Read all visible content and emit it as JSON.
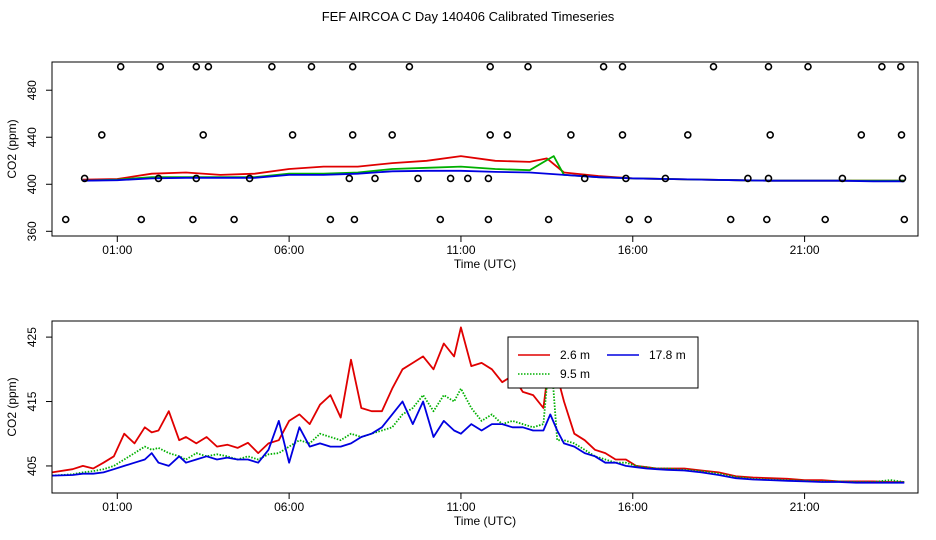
{
  "title": "FEF AIRCOA C  Day 140406  Calibrated Timeseries",
  "chart_data": [
    {
      "type": "line",
      "panel": "top",
      "xlabel": "Time (UTC)",
      "ylabel": "CO2 (ppm)",
      "xlim": [
        -0.9,
        24.3
      ],
      "ylim": [
        356,
        504
      ],
      "x_ticks": [
        1,
        6,
        11,
        16,
        21
      ],
      "x_tick_labels": [
        "01:00",
        "06:00",
        "11:00",
        "16:00",
        "21:00"
      ],
      "y_ticks": [
        360,
        400,
        440,
        480
      ],
      "y_tick_labels": [
        "360",
        "400",
        "440",
        "480"
      ],
      "grid": false,
      "series": [
        {
          "color": "#e00000",
          "x": [
            0,
            1,
            2,
            3,
            4,
            5,
            6,
            7,
            8,
            9,
            10,
            11,
            12,
            13,
            13.5,
            14,
            15,
            16,
            17,
            18,
            19,
            20,
            21,
            22,
            23,
            23.9
          ],
          "values": [
            404,
            404.5,
            409,
            410,
            408,
            409,
            413,
            415,
            415,
            418,
            420,
            424,
            420,
            419,
            422,
            410,
            407,
            405,
            404.5,
            404,
            403.5,
            403,
            403,
            403,
            403,
            403
          ]
        },
        {
          "color": "#00b000",
          "x": [
            0,
            1,
            2,
            3,
            4,
            5,
            6,
            7,
            8,
            9,
            10,
            11,
            12,
            13,
            13.7,
            14,
            15,
            16,
            17,
            18,
            19,
            20,
            21,
            22,
            23,
            23.9
          ],
          "values": [
            403,
            404,
            406,
            406,
            406,
            406,
            409,
            409,
            410,
            413,
            414,
            415,
            413,
            412,
            424,
            408,
            406,
            405,
            404.5,
            404,
            403.5,
            403,
            403,
            403,
            403,
            403
          ]
        },
        {
          "color": "#0000e0",
          "x": [
            0,
            1,
            2,
            3,
            4,
            5,
            6,
            7,
            8,
            9,
            10,
            11,
            12,
            13,
            14,
            15,
            16,
            17,
            18,
            19,
            20,
            21,
            22,
            23,
            23.9
          ],
          "values": [
            403,
            403.5,
            405,
            405.5,
            405.5,
            405.5,
            408,
            408,
            409,
            411,
            411.5,
            411.5,
            410.5,
            410,
            408,
            406,
            405,
            404.5,
            404,
            403.5,
            403,
            403,
            403,
            402.5,
            402.5
          ]
        }
      ],
      "flag_points": {
        "x": [
          -0.5,
          0.05,
          0.55,
          1.1,
          1.7,
          2.2,
          2.25,
          3.2,
          3.3,
          3.3,
          3.5,
          3.65,
          4.4,
          4.85,
          5.5,
          6.1,
          6.65,
          7.2,
          7.75,
          7.85,
          7.85,
          7.9,
          8.5,
          9.0,
          9.5,
          9.75,
          10.4,
          10.7,
          11.2,
          11.8,
          11.8,
          11.85,
          11.85,
          12.35,
          12.95,
          13.55,
          14.2,
          14.6,
          15.15,
          15.7,
          15.7,
          15.8,
          15.9,
          16.45,
          16.95,
          17.6,
          18.35,
          18.85,
          19.35,
          19.9,
          19.95,
          19.95,
          20.0,
          21.1,
          21.6,
          22.1,
          22.65,
          23.25,
          23.8,
          23.82,
          23.85,
          23.9
        ],
        "values": [
          370,
          405,
          442,
          500,
          370,
          405,
          500,
          370,
          500,
          405,
          442,
          500,
          370,
          405,
          500,
          442,
          500,
          370,
          405,
          500,
          442,
          370,
          405,
          442,
          500,
          405,
          370,
          405,
          405,
          370,
          405,
          500,
          442,
          442,
          500,
          370,
          442,
          405,
          500,
          500,
          442,
          405,
          370,
          370,
          405,
          442,
          500,
          370,
          405,
          370,
          405,
          500,
          442,
          500,
          370,
          405,
          442,
          500,
          500,
          442,
          405,
          370
        ]
      }
    },
    {
      "type": "line",
      "panel": "bottom",
      "xlabel": "Time (UTC)",
      "ylabel": "CO2 (ppm)",
      "xlim": [
        -0.9,
        24.3
      ],
      "ylim": [
        400.8,
        427.5
      ],
      "x_ticks": [
        1,
        6,
        11,
        16,
        21
      ],
      "x_tick_labels": [
        "01:00",
        "06:00",
        "11:00",
        "16:00",
        "21:00"
      ],
      "y_ticks": [
        405,
        415,
        425
      ],
      "y_tick_labels": [
        "405",
        "415",
        "425"
      ],
      "grid": false,
      "legend": {
        "placement": "top-center",
        "columns": 2
      },
      "series": [
        {
          "name": "2.6 m",
          "color": "#e00000",
          "style": "solid",
          "x": [
            -0.9,
            -0.3,
            0,
            0.3,
            0.6,
            0.9,
            1.2,
            1.5,
            1.8,
            2.0,
            2.2,
            2.5,
            2.8,
            3.0,
            3.3,
            3.6,
            3.9,
            4.2,
            4.5,
            4.8,
            5.1,
            5.4,
            5.7,
            6.0,
            6.3,
            6.6,
            6.9,
            7.2,
            7.5,
            7.8,
            8.1,
            8.4,
            8.7,
            9.0,
            9.3,
            9.6,
            9.9,
            10.2,
            10.5,
            10.8,
            11.0,
            11.3,
            11.6,
            11.9,
            12.2,
            12.5,
            12.8,
            13.1,
            13.4,
            13.6,
            13.8,
            14.0,
            14.3,
            14.6,
            14.9,
            15.2,
            15.5,
            15.8,
            16.1,
            16.4,
            16.7,
            17.0,
            17.5,
            18.0,
            18.5,
            19.0,
            19.5,
            20.0,
            20.5,
            21.0,
            21.5,
            22.0,
            22.5,
            23.0,
            23.5,
            23.9
          ],
          "values": [
            404.0,
            404.5,
            405.0,
            404.6,
            405.5,
            406.5,
            410.0,
            408.5,
            411.0,
            410.2,
            410.5,
            413.5,
            409.0,
            409.5,
            408.5,
            409.5,
            408.0,
            408.3,
            407.8,
            408.6,
            407.0,
            408.5,
            409.0,
            412.0,
            413.0,
            411.5,
            414.5,
            416.0,
            412.5,
            421.5,
            414.0,
            413.5,
            413.5,
            417.0,
            420.0,
            421.0,
            422.0,
            420.0,
            424.0,
            422.0,
            426.5,
            420.5,
            421.0,
            420.0,
            418.0,
            419.0,
            416.5,
            416.0,
            414.0,
            422.5,
            419.0,
            415.0,
            410.0,
            409.0,
            407.5,
            407.0,
            406.0,
            406.0,
            405.0,
            404.8,
            404.6,
            404.6,
            404.6,
            404.3,
            404.0,
            403.4,
            403.2,
            403.1,
            403.0,
            402.8,
            402.8,
            402.6,
            402.6,
            402.6,
            402.5,
            402.5
          ]
        },
        {
          "name": "9.5 m",
          "color": "#00b000",
          "style": "dotted",
          "x": [
            -0.9,
            -0.3,
            0,
            0.3,
            0.6,
            0.9,
            1.2,
            1.5,
            1.8,
            2.0,
            2.2,
            2.5,
            2.8,
            3.0,
            3.3,
            3.6,
            3.9,
            4.2,
            4.5,
            4.8,
            5.1,
            5.4,
            5.7,
            6.0,
            6.3,
            6.6,
            6.9,
            7.2,
            7.5,
            7.8,
            8.1,
            8.4,
            8.7,
            9.0,
            9.3,
            9.6,
            9.9,
            10.2,
            10.5,
            10.8,
            11.0,
            11.3,
            11.6,
            11.9,
            12.2,
            12.5,
            12.8,
            13.1,
            13.4,
            13.6,
            13.8,
            14.0,
            14.3,
            14.6,
            14.9,
            15.2,
            15.5,
            15.8,
            16.1,
            16.4,
            16.7,
            17.0,
            17.5,
            18.0,
            18.5,
            19.0,
            19.5,
            20.0,
            20.5,
            21.0,
            21.5,
            22.0,
            22.5,
            23.0,
            23.5,
            23.9
          ],
          "values": [
            403.5,
            403.7,
            404.0,
            404.2,
            404.5,
            405.0,
            406.0,
            407.0,
            408.0,
            407.5,
            407.8,
            407.0,
            406.5,
            406.0,
            407.0,
            406.5,
            406.8,
            406.5,
            406.0,
            406.5,
            406.0,
            406.8,
            407.0,
            408.0,
            409.0,
            408.5,
            410.0,
            409.5,
            409.0,
            410.0,
            409.5,
            410.0,
            410.5,
            411.0,
            413.0,
            414.0,
            416.0,
            413.5,
            416.0,
            415.0,
            417.0,
            414.0,
            412.0,
            413.0,
            411.5,
            412.0,
            411.5,
            411.0,
            411.5,
            423.5,
            409.0,
            409.0,
            408.5,
            407.5,
            406.5,
            406.0,
            405.5,
            405.5,
            405.0,
            404.8,
            404.6,
            404.6,
            404.4,
            404.2,
            403.8,
            403.3,
            403.0,
            402.9,
            402.8,
            402.7,
            402.6,
            402.6,
            402.5,
            402.5,
            402.8,
            402.5
          ]
        },
        {
          "name": "17.8 m",
          "color": "#0000e0",
          "style": "solid",
          "x": [
            -0.9,
            -0.3,
            0,
            0.3,
            0.6,
            0.9,
            1.2,
            1.5,
            1.8,
            2.0,
            2.2,
            2.5,
            2.8,
            3.0,
            3.3,
            3.6,
            3.9,
            4.2,
            4.5,
            4.8,
            5.1,
            5.4,
            5.7,
            6.0,
            6.3,
            6.6,
            6.9,
            7.2,
            7.5,
            7.8,
            8.1,
            8.4,
            8.7,
            9.0,
            9.3,
            9.6,
            9.9,
            10.2,
            10.5,
            10.8,
            11.0,
            11.3,
            11.6,
            11.9,
            12.2,
            12.5,
            12.8,
            13.1,
            13.4,
            13.6,
            13.8,
            14.0,
            14.3,
            14.6,
            14.9,
            15.2,
            15.5,
            15.8,
            16.1,
            16.4,
            16.7,
            17.0,
            17.5,
            18.0,
            18.5,
            19.0,
            19.5,
            20.0,
            20.5,
            21.0,
            21.5,
            22.0,
            22.5,
            23.0,
            23.5,
            23.9
          ],
          "values": [
            403.5,
            403.6,
            403.8,
            403.8,
            404.0,
            404.5,
            405.0,
            405.5,
            406.0,
            407.0,
            405.5,
            405.0,
            406.5,
            405.5,
            406.0,
            406.5,
            406.0,
            406.3,
            406.0,
            406.0,
            405.5,
            407.5,
            412.0,
            405.5,
            411.0,
            408.0,
            408.5,
            408.0,
            408.0,
            408.5,
            409.5,
            410.0,
            411.0,
            413.0,
            415.0,
            411.5,
            415.0,
            409.5,
            412.0,
            410.5,
            410.0,
            411.5,
            410.5,
            411.5,
            411.5,
            411.0,
            411.0,
            410.5,
            410.5,
            413.0,
            410.5,
            408.5,
            408.0,
            407.0,
            406.5,
            405.5,
            405.5,
            405.0,
            404.8,
            404.6,
            404.5,
            404.4,
            404.3,
            404.0,
            403.6,
            403.1,
            402.9,
            402.8,
            402.7,
            402.6,
            402.5,
            402.5,
            402.4,
            402.4,
            402.4,
            402.4
          ]
        }
      ]
    }
  ]
}
